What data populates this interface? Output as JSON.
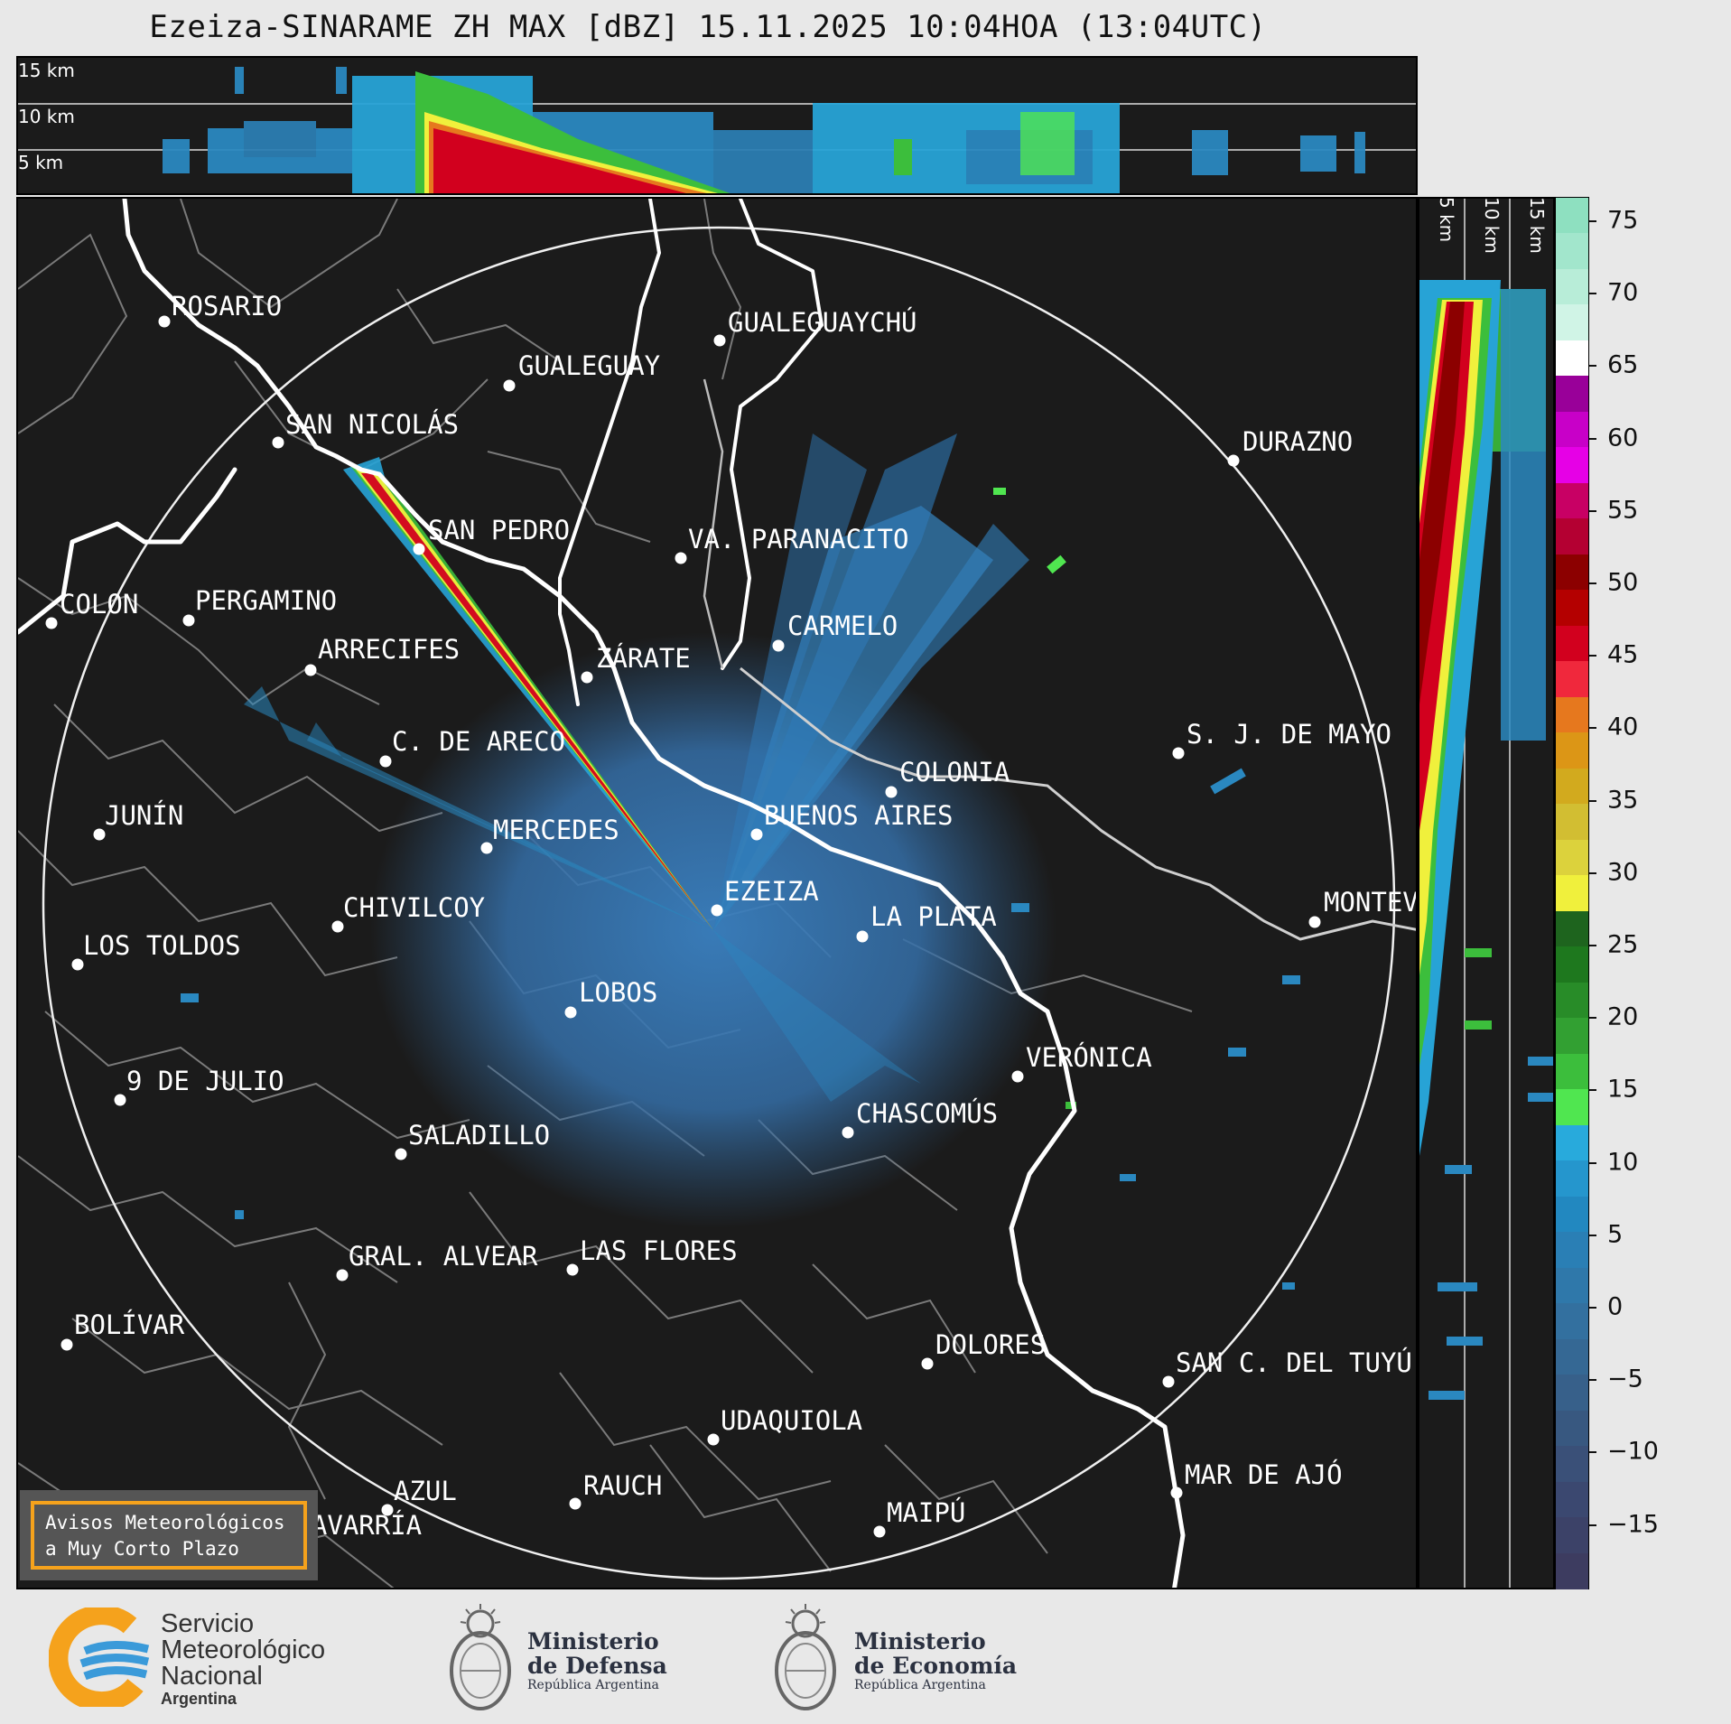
{
  "title": "Ezeiza-SINARAME ZH MAX [dBZ] 15.11.2025 10:04HOA (13:04UTC)",
  "height_labels": [
    "15 km",
    "10 km",
    "5 km"
  ],
  "side_height_labels": [
    "5 km",
    "10 km",
    "15 km"
  ],
  "colorbar": {
    "ticks": [
      "75",
      "70",
      "65",
      "60",
      "55",
      "50",
      "45",
      "40",
      "35",
      "30",
      "25",
      "20",
      "15",
      "10",
      "5",
      "0",
      "−5",
      "−10",
      "−15"
    ],
    "segments": [
      {
        "color": "#8ee0c0"
      },
      {
        "color": "#a2e6cc"
      },
      {
        "color": "#b8edd8"
      },
      {
        "color": "#d0f4e6"
      },
      {
        "color": "#ffffff"
      },
      {
        "color": "#990099"
      },
      {
        "color": "#c800c8"
      },
      {
        "color": "#e600e6"
      },
      {
        "color": "#c80064"
      },
      {
        "color": "#b40032"
      },
      {
        "color": "#8c0000"
      },
      {
        "color": "#b40000"
      },
      {
        "color": "#d2001e"
      },
      {
        "color": "#f0283c"
      },
      {
        "color": "#e6781e"
      },
      {
        "color": "#dc9616"
      },
      {
        "color": "#d2aa1e"
      },
      {
        "color": "#d2be32"
      },
      {
        "color": "#dcd23c"
      },
      {
        "color": "#f0f03c"
      },
      {
        "color": "#1e641e"
      },
      {
        "color": "#1e781e"
      },
      {
        "color": "#288c28"
      },
      {
        "color": "#32a032"
      },
      {
        "color": "#3cbe3c"
      },
      {
        "color": "#50e650"
      },
      {
        "color": "#28aadc"
      },
      {
        "color": "#2596cd"
      },
      {
        "color": "#2288c0"
      },
      {
        "color": "#2a7fb5"
      },
      {
        "color": "#2f78aa"
      },
      {
        "color": "#33709f"
      },
      {
        "color": "#356894"
      },
      {
        "color": "#37608a"
      },
      {
        "color": "#385880"
      },
      {
        "color": "#3a5078"
      },
      {
        "color": "#3b4870"
      },
      {
        "color": "#3c4268"
      },
      {
        "color": "#3d3c60"
      }
    ]
  },
  "cities": [
    {
      "name": "ROSARIO"
    },
    {
      "name": "GUALEGUAYCHÚ"
    },
    {
      "name": "GUALEGUAY"
    },
    {
      "name": "SAN NICOLÁS"
    },
    {
      "name": "DURAZNO"
    },
    {
      "name": "SAN PEDRO"
    },
    {
      "name": "VA. PARANACITO"
    },
    {
      "name": "COLON"
    },
    {
      "name": "PERGAMINO"
    },
    {
      "name": "CARMELO"
    },
    {
      "name": "ARRECIFES"
    },
    {
      "name": "ZÁRATE"
    },
    {
      "name": "S. J. DE MAYO"
    },
    {
      "name": "C. DE ARECO"
    },
    {
      "name": "COLONIA"
    },
    {
      "name": "JUNÍN"
    },
    {
      "name": "BUENOS AIRES"
    },
    {
      "name": "MERCEDES"
    },
    {
      "name": "MONTEV"
    },
    {
      "name": "EZEIZA"
    },
    {
      "name": "CHIVILCOY"
    },
    {
      "name": "LA PLATA"
    },
    {
      "name": "LOS TOLDOS"
    },
    {
      "name": "LOBOS"
    },
    {
      "name": "VERÓNICA"
    },
    {
      "name": "9 DE JULIO"
    },
    {
      "name": "CHASCOMÚS"
    },
    {
      "name": "SALADILLO"
    },
    {
      "name": "GRAL. ALVEAR"
    },
    {
      "name": "LAS FLORES"
    },
    {
      "name": "BOLÍVAR"
    },
    {
      "name": "DOLORES"
    },
    {
      "name": "SAN C. DEL TUYÚ"
    },
    {
      "name": "UDAQUIOLA"
    },
    {
      "name": "MAR DE AJÓ"
    },
    {
      "name": "AZUL"
    },
    {
      "name": "RAUCH"
    },
    {
      "name": "MAIPÚ"
    },
    {
      "name": "OLAVARRÍA"
    }
  ],
  "warning": {
    "line1": "Avisos Meteorológicos",
    "line2": "a Muy Corto Plazo"
  },
  "logos": {
    "smn": {
      "line1": "Servicio",
      "line2": "Meteorológico",
      "line3": "Nacional",
      "line4": "Argentina"
    },
    "defensa": {
      "line1": "Ministerio",
      "line2": "de Defensa",
      "line3": "República Argentina"
    },
    "economia": {
      "line1": "Ministerio",
      "line2": "de Economía",
      "line3": "República Argentina"
    }
  }
}
